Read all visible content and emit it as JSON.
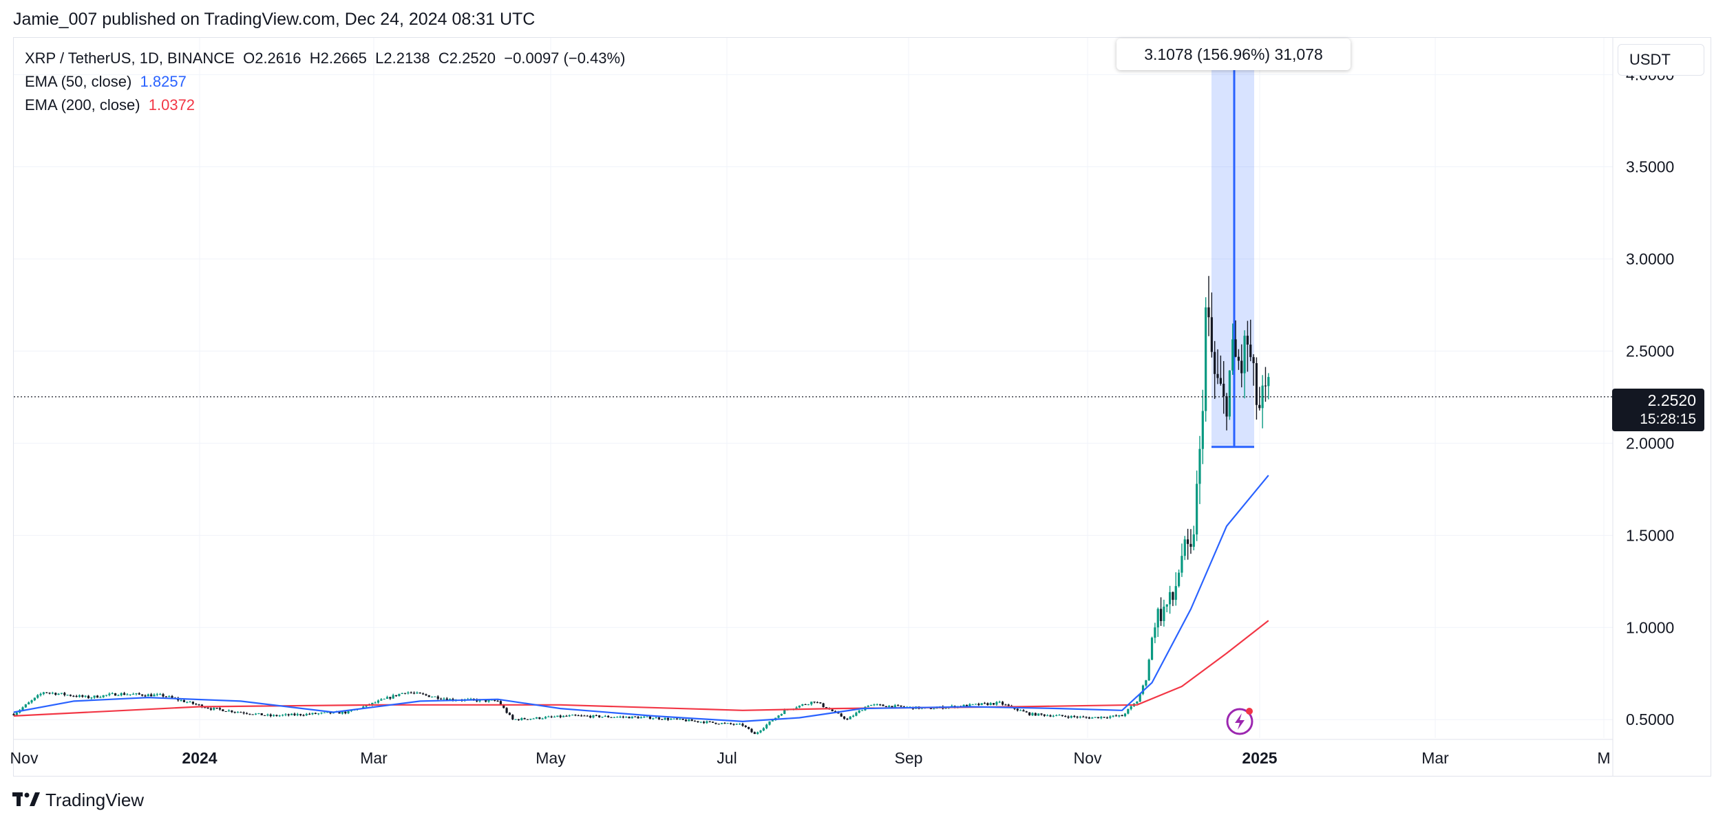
{
  "header": {
    "published": "Jamie_007 published on TradingView.com, Dec 24, 2024 08:31 UTC"
  },
  "legend": {
    "symbol": "XRP / TetherUS, 1D, BINANCE",
    "ohlc": "O2.2616  H2.2665  L2.2138  C2.2520  −0.0097 (−0.43%)",
    "ema50_label": "EMA (50, close)",
    "ema50_value": "1.8257",
    "ema200_label": "EMA (200, close)",
    "ema200_value": "1.0372"
  },
  "currency": "USDT",
  "measure_tooltip": "3.1078 (156.96%) 31,078",
  "last_price": {
    "value": "2.2520",
    "countdown": "15:28:15"
  },
  "footer": {
    "brand": "TradingView"
  },
  "icons": {
    "logo": "tradingview-logo-icon",
    "flash": "lightning-bolt-icon"
  },
  "colors": {
    "up": "#089981",
    "down": "#131722",
    "ema50": "#2962ff",
    "ema200": "#f23645",
    "measure": "#2962ff"
  },
  "chart_data": {
    "type": "candlestick",
    "ylim": [
      0.4,
      4.2
    ],
    "y_ticks": [
      "4.0000",
      "3.5000",
      "3.0000",
      "2.5000",
      "2.0000",
      "1.5000",
      "1.0000",
      "0.5000"
    ],
    "x_ticks": [
      "Nov",
      "2024",
      "Mar",
      "May",
      "Jul",
      "Sep",
      "Nov",
      "2025",
      "Mar",
      "M"
    ],
    "grid": true,
    "price_line": 2.252,
    "measure": {
      "from": 1.98,
      "to": 4.18
    },
    "ema50": [
      [
        "2023-10-31",
        0.54
      ],
      [
        "2023-11-20",
        0.6
      ],
      [
        "2023-12-15",
        0.62
      ],
      [
        "2024-01-15",
        0.6
      ],
      [
        "2024-02-15",
        0.54
      ],
      [
        "2024-03-15",
        0.6
      ],
      [
        "2024-04-10",
        0.61
      ],
      [
        "2024-05-01",
        0.56
      ],
      [
        "2024-06-01",
        0.52
      ],
      [
        "2024-07-01",
        0.49
      ],
      [
        "2024-07-20",
        0.51
      ],
      [
        "2024-08-10",
        0.56
      ],
      [
        "2024-09-15",
        0.57
      ],
      [
        "2024-10-15",
        0.56
      ],
      [
        "2024-11-05",
        0.55
      ],
      [
        "2024-11-15",
        0.7
      ],
      [
        "2024-11-28",
        1.1
      ],
      [
        "2024-12-10",
        1.55
      ],
      [
        "2024-12-24",
        1.8257
      ]
    ],
    "ema200": [
      [
        "2023-10-31",
        0.52
      ],
      [
        "2024-01-01",
        0.57
      ],
      [
        "2024-03-01",
        0.58
      ],
      [
        "2024-05-01",
        0.58
      ],
      [
        "2024-07-01",
        0.55
      ],
      [
        "2024-08-01",
        0.56
      ],
      [
        "2024-10-01",
        0.57
      ],
      [
        "2024-11-10",
        0.58
      ],
      [
        "2024-11-25",
        0.68
      ],
      [
        "2024-12-10",
        0.86
      ],
      [
        "2024-12-24",
        1.0372
      ]
    ],
    "anchors": [
      [
        "2023-10-31",
        0.53
      ],
      [
        "2023-11-10",
        0.65
      ],
      [
        "2023-11-25",
        0.62
      ],
      [
        "2023-12-05",
        0.64
      ],
      [
        "2023-12-20",
        0.63
      ],
      [
        "2024-01-05",
        0.56
      ],
      [
        "2024-01-25",
        0.52
      ],
      [
        "2024-02-20",
        0.54
      ],
      [
        "2024-03-10",
        0.65
      ],
      [
        "2024-03-25",
        0.61
      ],
      [
        "2024-04-10",
        0.6
      ],
      [
        "2024-04-15",
        0.5
      ],
      [
        "2024-05-05",
        0.52
      ],
      [
        "2024-06-01",
        0.51
      ],
      [
        "2024-07-01",
        0.47
      ],
      [
        "2024-07-05",
        0.42
      ],
      [
        "2024-07-15",
        0.55
      ],
      [
        "2024-07-25",
        0.6
      ],
      [
        "2024-08-05",
        0.5
      ],
      [
        "2024-08-12",
        0.58
      ],
      [
        "2024-09-01",
        0.56
      ],
      [
        "2024-09-25",
        0.59
      ],
      [
        "2024-10-05",
        0.53
      ],
      [
        "2024-10-25",
        0.51
      ],
      [
        "2024-11-05",
        0.52
      ],
      [
        "2024-11-10",
        0.6
      ],
      [
        "2024-11-13",
        0.72
      ],
      [
        "2024-11-16",
        1.05
      ],
      [
        "2024-11-22",
        1.15
      ],
      [
        "2024-11-25",
        1.4
      ],
      [
        "2024-11-28",
        1.38
      ],
      [
        "2024-12-01",
        1.9
      ],
      [
        "2024-12-03",
        2.7
      ],
      [
        "2024-12-06",
        2.35
      ],
      [
        "2024-12-09",
        2.2
      ],
      [
        "2024-12-12",
        2.45
      ],
      [
        "2024-12-15",
        2.42
      ],
      [
        "2024-12-17",
        2.55
      ],
      [
        "2024-12-19",
        2.3
      ],
      [
        "2024-12-21",
        2.18
      ],
      [
        "2024-12-24",
        2.252
      ]
    ]
  }
}
